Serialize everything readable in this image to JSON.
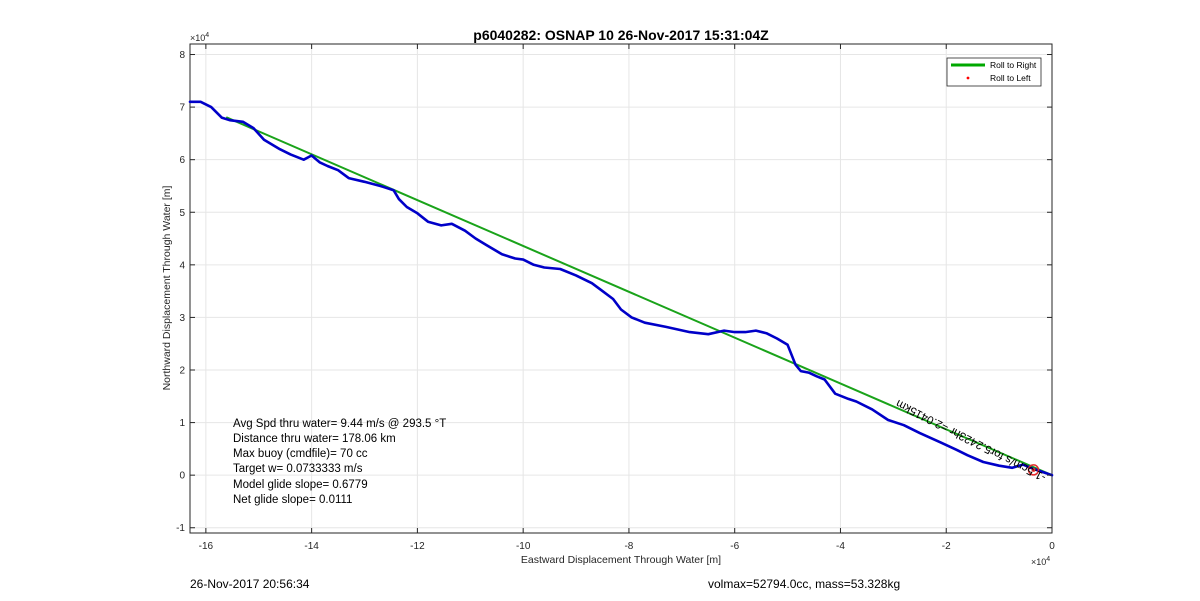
{
  "chart_data": {
    "type": "line",
    "title": "p6040282: OSNAP 10 26-Nov-2017 15:31:04Z",
    "xlabel": "Eastward Displacement Through Water [m]",
    "ylabel": "Northward Displacement Through Water [m]",
    "x_exponent_label": "×10",
    "x_exponent": "4",
    "y_exponent_label": "×10",
    "y_exponent": "4",
    "xlim": [
      -16.3,
      0
    ],
    "ylim": [
      -1.1,
      8.2
    ],
    "xticks": [
      -16,
      -14,
      -12,
      -10,
      -8,
      -6,
      -4,
      -2,
      0
    ],
    "yticks": [
      -1,
      0,
      1,
      2,
      3,
      4,
      5,
      6,
      7,
      8
    ],
    "grid": true,
    "legend_position": "top-right",
    "legend": [
      {
        "label": "Roll to Right",
        "marker": "line",
        "color": "#00a800"
      },
      {
        "label": "Roll to Left",
        "marker": "dot",
        "color": "#ff0000"
      }
    ],
    "series": [
      {
        "role": "model-glide-path",
        "color": "#1aa31a",
        "x": [
          -15.6,
          0
        ],
        "y": [
          6.8,
          0
        ]
      },
      {
        "role": "track",
        "color": "#0000c8",
        "x": [
          -16.3,
          -16.1,
          -15.9,
          -15.7,
          -15.55,
          -15.3,
          -15.1,
          -14.9,
          -14.6,
          -14.4,
          -14.15,
          -14.0,
          -13.85,
          -13.7,
          -13.5,
          -13.3,
          -13.0,
          -12.7,
          -12.45,
          -12.35,
          -12.2,
          -12.0,
          -11.8,
          -11.55,
          -11.35,
          -11.1,
          -10.9,
          -10.7,
          -10.4,
          -10.15,
          -10.0,
          -9.8,
          -9.6,
          -9.3,
          -9.0,
          -8.7,
          -8.5,
          -8.3,
          -8.15,
          -7.95,
          -7.7,
          -7.3,
          -6.85,
          -6.5,
          -6.2,
          -6.0,
          -5.8,
          -5.6,
          -5.4,
          -5.2,
          -5.0,
          -4.85,
          -4.75,
          -4.6,
          -4.45,
          -4.3,
          -4.1,
          -3.85,
          -3.7,
          -3.4,
          -3.1,
          -2.8,
          -2.5,
          -2.1,
          -1.8,
          -1.6,
          -1.3,
          -1.0,
          -0.75,
          -0.55,
          -0.35,
          -0.15,
          0.0
        ],
        "y": [
          7.1,
          7.1,
          7.0,
          6.8,
          6.75,
          6.72,
          6.6,
          6.38,
          6.2,
          6.1,
          6.0,
          6.08,
          5.95,
          5.88,
          5.8,
          5.65,
          5.58,
          5.5,
          5.42,
          5.25,
          5.1,
          4.98,
          4.82,
          4.75,
          4.78,
          4.65,
          4.5,
          4.38,
          4.2,
          4.12,
          4.1,
          4.0,
          3.95,
          3.92,
          3.8,
          3.65,
          3.5,
          3.35,
          3.15,
          3.0,
          2.9,
          2.82,
          2.72,
          2.68,
          2.75,
          2.72,
          2.72,
          2.75,
          2.7,
          2.6,
          2.48,
          2.1,
          1.98,
          1.95,
          1.88,
          1.82,
          1.55,
          1.45,
          1.4,
          1.25,
          1.05,
          0.95,
          0.8,
          0.62,
          0.48,
          0.38,
          0.25,
          0.18,
          0.14,
          0.2,
          0.12,
          0.05,
          0.0
        ]
      }
    ],
    "annotation": {
      "text": "-1.5cm/s for5.2423hr =2.0415km",
      "anchor_x": -0.1,
      "anchor_y": 0.0,
      "rotation_deg": 207
    },
    "end_marker": {
      "x": -0.35,
      "y": 0.1,
      "color": "#e52b2b"
    }
  },
  "stats": [
    "Avg Spd thru water=  9.44 m/s @ 293.5 °T",
    "Distance thru water= 178.06 km",
    "Max buoy (cmdfile)= 70 cc",
    "Target w= 0.0733333 m/s",
    "Model glide slope= 0.6779",
    "Net glide slope= 0.0111"
  ],
  "footer": {
    "timestamp": "26-Nov-2017 20:56:34",
    "volume_mass": "volmax=52794.0cc, mass=53.328kg"
  }
}
